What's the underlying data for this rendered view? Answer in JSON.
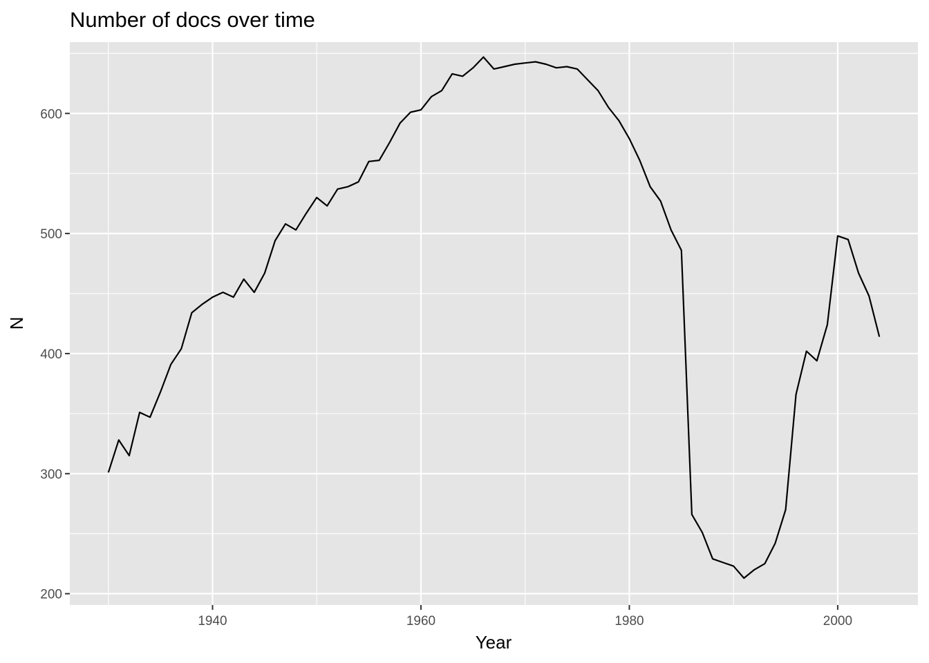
{
  "chart_data": {
    "type": "line",
    "title": "Number of docs over time",
    "xlabel": "Year",
    "ylabel": "N",
    "xlim": [
      1926.3,
      2007.7
    ],
    "ylim": [
      190.6,
      659.4
    ],
    "x_ticks": [
      1940,
      1960,
      1980,
      2000
    ],
    "y_ticks": [
      200,
      300,
      400,
      500,
      600
    ],
    "grid": true,
    "legend": "none",
    "colors": {
      "panel": "#e5e5e5",
      "line": "#000000",
      "grid": "#ffffff"
    },
    "series": [
      {
        "x": [
          1930,
          1931,
          1932,
          1933,
          1934,
          1935,
          1936,
          1937,
          1938,
          1939,
          1940,
          1941,
          1942,
          1943,
          1944,
          1945,
          1946,
          1947,
          1948,
          1949,
          1950,
          1951,
          1952,
          1953,
          1954,
          1955,
          1956,
          1957,
          1958,
          1959,
          1960,
          1961,
          1962,
          1963,
          1964,
          1965,
          1966,
          1967,
          1968,
          1969,
          1970,
          1971,
          1972,
          1973,
          1974,
          1975,
          1976,
          1977,
          1978,
          1979,
          1980,
          1981,
          1982,
          1983,
          1984,
          1985,
          1986,
          1987,
          1988,
          1989,
          1990,
          1991,
          1992,
          1993,
          1994,
          1995,
          1996,
          1997,
          1998,
          1999,
          2000,
          2001,
          2002,
          2003,
          2004
        ],
        "values": [
          301,
          328,
          315,
          351,
          347,
          368,
          391,
          404,
          434,
          441,
          447,
          451,
          447,
          462,
          451,
          467,
          494,
          508,
          503,
          517,
          530,
          523,
          537,
          539,
          543,
          560,
          561,
          576,
          592,
          601,
          603,
          614,
          619,
          633,
          631,
          638,
          647,
          637,
          639,
          641,
          642,
          643,
          641,
          638,
          639,
          637,
          628,
          619,
          605,
          594,
          579,
          561,
          539,
          527,
          503,
          486,
          266,
          251,
          229,
          226,
          223,
          213,
          220,
          225,
          242,
          270,
          366,
          402,
          394,
          424,
          498,
          495,
          467,
          448,
          414
        ]
      }
    ]
  }
}
